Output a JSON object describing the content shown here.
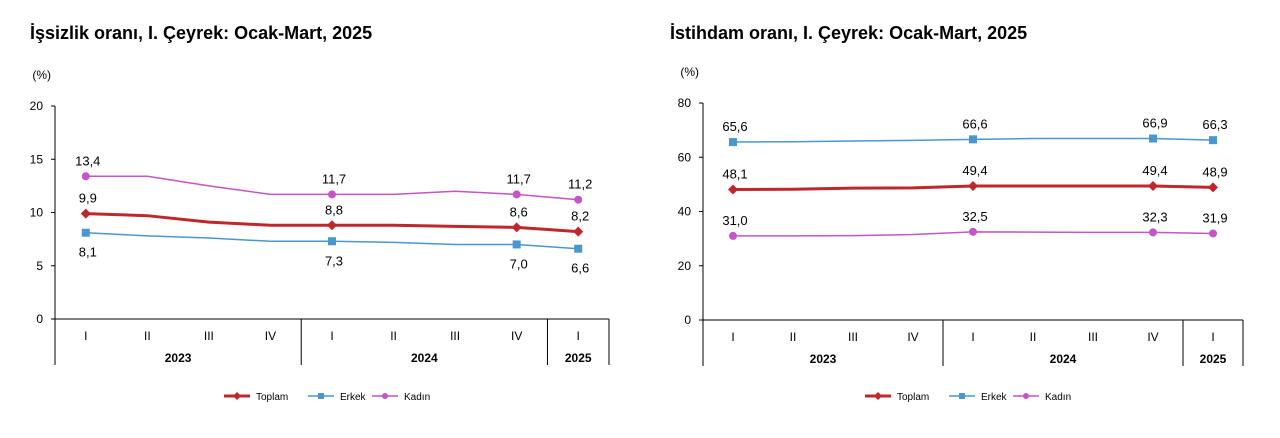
{
  "chart_data": [
    {
      "type": "line",
      "title": "İşsizlik oranı, I. Çeyrek: Ocak-Mart, 2025",
      "ylabel": "(%)",
      "ylim": [
        0,
        20
      ],
      "yticks": [
        "0",
        "5",
        "10",
        "15",
        "20"
      ],
      "categories": [
        "I",
        "II",
        "III",
        "IV",
        "I",
        "II",
        "III",
        "IV",
        "I"
      ],
      "year_groups": [
        {
          "label": "2023",
          "span": 4
        },
        {
          "label": "2024",
          "span": 4
        },
        {
          "label": "2025",
          "span": 1
        }
      ],
      "series": [
        {
          "name": "Toplam",
          "color": "#c0272d",
          "values": [
            9.9,
            9.7,
            9.1,
            8.8,
            8.8,
            8.8,
            8.7,
            8.6,
            8.2
          ],
          "labels": [
            {
              "i": 0,
              "text": "9,9",
              "pos": "above"
            },
            {
              "i": 4,
              "text": "8,8",
              "pos": "above"
            },
            {
              "i": 7,
              "text": "8,6",
              "pos": "above"
            },
            {
              "i": 8,
              "text": "8,2",
              "pos": "above"
            }
          ]
        },
        {
          "name": "Erkek",
          "color": "#4a97cf",
          "values": [
            8.1,
            7.8,
            7.6,
            7.3,
            7.3,
            7.2,
            7.0,
            7.0,
            6.6
          ],
          "labels": [
            {
              "i": 0,
              "text": "8,1",
              "pos": "below"
            },
            {
              "i": 4,
              "text": "7,3",
              "pos": "below"
            },
            {
              "i": 7,
              "text": "7,0",
              "pos": "below"
            },
            {
              "i": 8,
              "text": "6,6",
              "pos": "below"
            }
          ]
        },
        {
          "name": "Kadın",
          "color": "#c654c4",
          "values": [
            13.4,
            13.4,
            12.5,
            11.7,
            11.7,
            11.7,
            12.0,
            11.7,
            11.2
          ],
          "labels": [
            {
              "i": 0,
              "text": "13,4",
              "pos": "above"
            },
            {
              "i": 4,
              "text": "11,7",
              "pos": "above"
            },
            {
              "i": 7,
              "text": "11,7",
              "pos": "above"
            },
            {
              "i": 8,
              "text": "11,2",
              "pos": "above"
            }
          ]
        }
      ],
      "legend_position": "bottom"
    },
    {
      "type": "line",
      "title": "İstihdam oranı, I. Çeyrek: Ocak-Mart, 2025",
      "ylabel": "(%)",
      "ylim": [
        0,
        80
      ],
      "yticks": [
        "0",
        "20",
        "40",
        "60",
        "80"
      ],
      "categories": [
        "I",
        "II",
        "III",
        "IV",
        "I",
        "II",
        "III",
        "IV",
        "I"
      ],
      "year_groups": [
        {
          "label": "2023",
          "span": 4
        },
        {
          "label": "2024",
          "span": 4
        },
        {
          "label": "2025",
          "span": 1
        }
      ],
      "series": [
        {
          "name": "Toplam",
          "color": "#c0272d",
          "values": [
            48.1,
            48.2,
            48.6,
            48.7,
            49.4,
            49.4,
            49.4,
            49.4,
            48.9
          ],
          "labels": [
            {
              "i": 0,
              "text": "48,1",
              "pos": "above"
            },
            {
              "i": 4,
              "text": "49,4",
              "pos": "above"
            },
            {
              "i": 7,
              "text": "49,4",
              "pos": "above"
            },
            {
              "i": 8,
              "text": "48,9",
              "pos": "above"
            }
          ]
        },
        {
          "name": "Erkek",
          "color": "#4a97cf",
          "values": [
            65.6,
            65.7,
            66.0,
            66.2,
            66.6,
            66.9,
            66.9,
            66.9,
            66.3
          ],
          "labels": [
            {
              "i": 0,
              "text": "65,6",
              "pos": "above"
            },
            {
              "i": 4,
              "text": "66,6",
              "pos": "above"
            },
            {
              "i": 7,
              "text": "66,9",
              "pos": "above"
            },
            {
              "i": 8,
              "text": "66,3",
              "pos": "above"
            }
          ]
        },
        {
          "name": "Kadın",
          "color": "#c654c4",
          "values": [
            31.0,
            31.0,
            31.1,
            31.5,
            32.5,
            32.4,
            32.3,
            32.3,
            31.9
          ],
          "labels": [
            {
              "i": 0,
              "text": "31,0",
              "pos": "above"
            },
            {
              "i": 4,
              "text": "32,5",
              "pos": "above"
            },
            {
              "i": 7,
              "text": "32,3",
              "pos": "above"
            },
            {
              "i": 8,
              "text": "31,9",
              "pos": "above"
            }
          ]
        }
      ],
      "legend_position": "bottom"
    }
  ]
}
